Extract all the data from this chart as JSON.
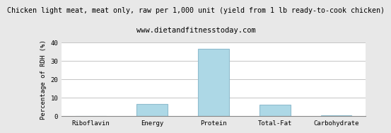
{
  "title": "Chicken light meat, meat only, raw per 1,000 unit (yield from 1 lb ready-to-cook chicken)",
  "subtitle": "www.dietandfitnesstoday.com",
  "categories": [
    "Riboflavin",
    "Energy",
    "Protein",
    "Total-Fat",
    "Carbohydrate"
  ],
  "values": [
    0.0,
    6.5,
    36.5,
    6.3,
    0.5
  ],
  "bar_color": "#add8e6",
  "bar_edge_color": "#8fbcce",
  "ylabel": "Percentage of RDH (%)",
  "ylim": [
    0,
    40
  ],
  "yticks": [
    0,
    10,
    20,
    30,
    40
  ],
  "bg_color": "#e8e8e8",
  "plot_bg_color": "#ffffff",
  "grid_color": "#bbbbbb",
  "title_fontsize": 7.2,
  "subtitle_fontsize": 7.5,
  "ylabel_fontsize": 6.5,
  "tick_fontsize": 6.5
}
